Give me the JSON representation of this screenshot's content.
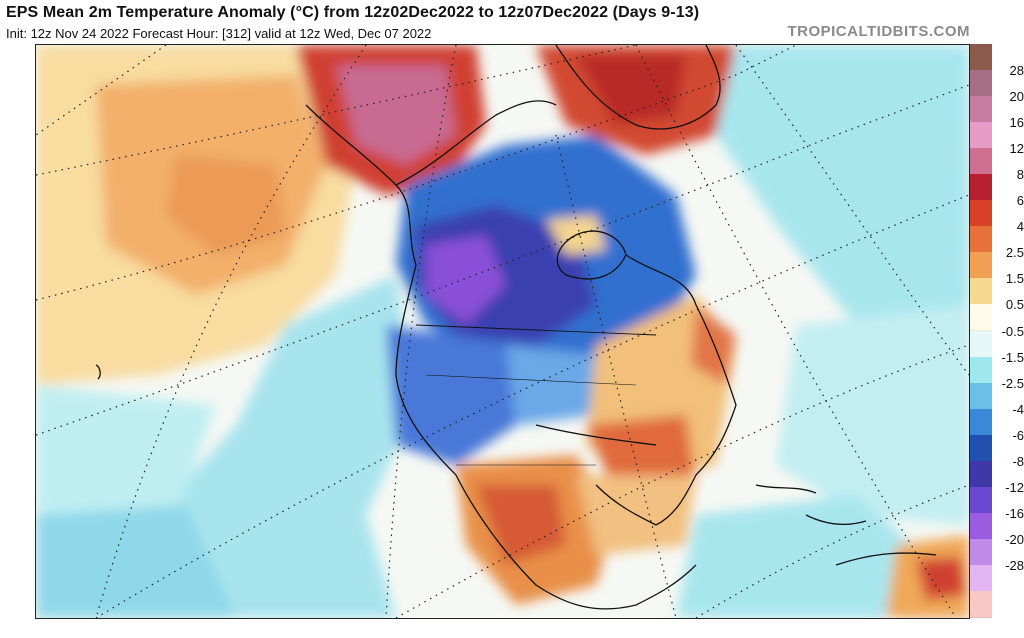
{
  "header": {
    "title": "EPS Mean 2m Temperature Anomaly (°C) from 12z02Dec2022 to 12z07Dec2022 (Days 9-13)",
    "subtitle": "Init: 12z Nov 24 2022   Forecast Hour: [312]   valid at 12z Wed, Dec 07 2022",
    "brand": "TROPICALTIDBITS.COM"
  },
  "colorbar": {
    "labels": [
      "28",
      "20",
      "16",
      "12",
      "8",
      "6",
      "4",
      "2.5",
      "1.5",
      "0.5",
      "-0.5",
      "-1.5",
      "-2.5",
      "-4",
      "-6",
      "-8",
      "-12",
      "-16",
      "-20",
      "-28"
    ],
    "colors": [
      "#8b5a4a",
      "#a86e86",
      "#c77ca2",
      "#e79cc8",
      "#d07090",
      "#b82030",
      "#d84028",
      "#e8703a",
      "#f0a050",
      "#f6d890",
      "#fffbe8",
      "#e6f7f8",
      "#9ee8ee",
      "#6cc0e8",
      "#3c88d8",
      "#2050b0",
      "#4038a8",
      "#6a48d0",
      "#9a5ce0",
      "#c08ae8",
      "#e2b4f0",
      "#f8c8c4"
    ]
  },
  "map": {
    "palette": {
      "ocean": "#fafaf8",
      "warm_light": "#f8e2a8",
      "warm_mid": "#f2b46a",
      "warm_strong": "#e07840",
      "hot": "#c83828",
      "pink": "#c87098",
      "cool_light": "#a8e6ee",
      "cool_mid": "#6ac0ea",
      "cold": "#3070d0",
      "very_cold": "#3a40b0",
      "purple": "#8a50d8"
    }
  }
}
